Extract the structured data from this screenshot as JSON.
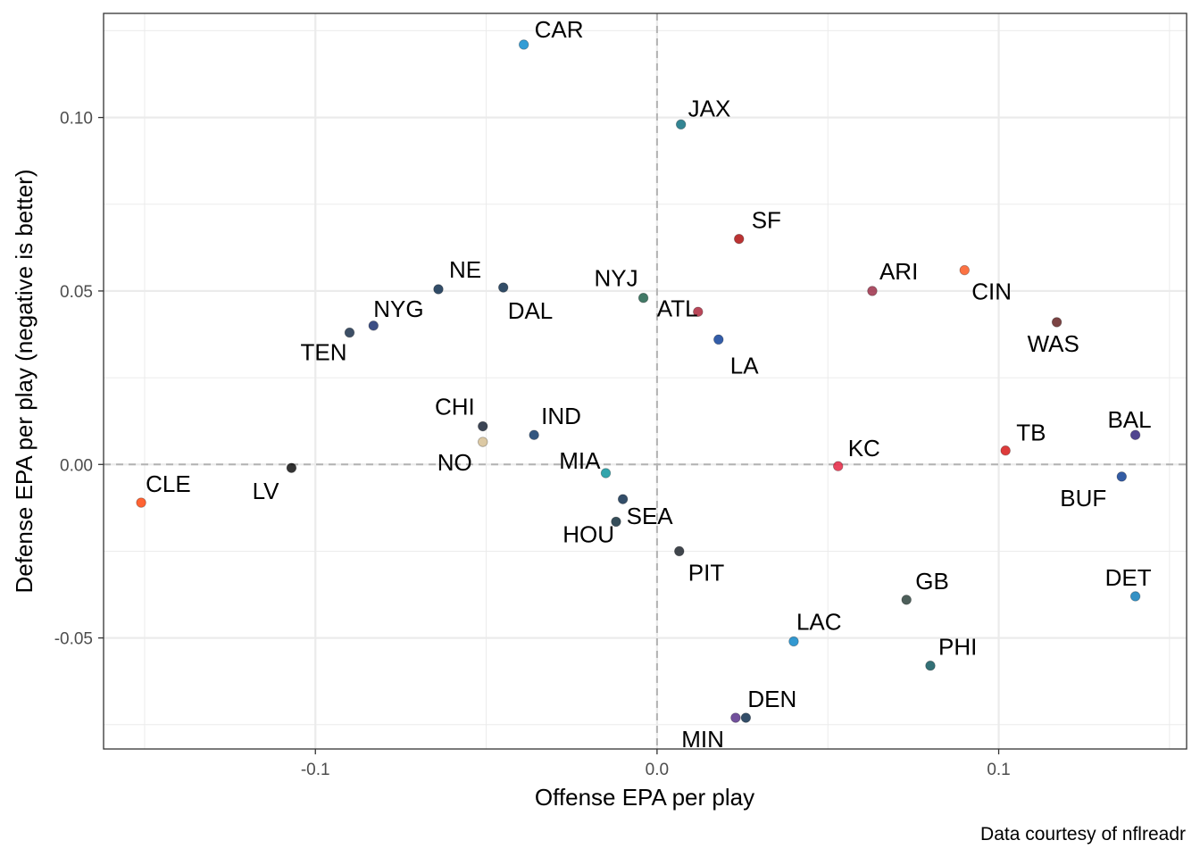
{
  "chart_data": {
    "type": "scatter",
    "title": "",
    "xlabel": "Offense EPA per play",
    "ylabel": "Defense EPA per play (negative is better)",
    "caption": "Data courtesy of nflreadr",
    "xlim": [
      -0.162,
      0.155
    ],
    "ylim": [
      -0.082,
      0.13
    ],
    "x_ticks": [
      -0.1,
      0.0,
      0.1
    ],
    "x_tick_labels": [
      "-0.1",
      "0.0",
      "0.1"
    ],
    "y_ticks": [
      -0.05,
      0.0,
      0.05,
      0.1
    ],
    "y_tick_labels": [
      "-0.05",
      "0.00",
      "0.05",
      "0.10"
    ],
    "reference_lines": {
      "x": 0,
      "y": 0,
      "style": "dashed"
    },
    "grid": true,
    "points": [
      {
        "team": "CAR",
        "x": -0.039,
        "y": 0.121,
        "color": "#0085CA"
      },
      {
        "team": "JAX",
        "x": 0.007,
        "y": 0.098,
        "color": "#006778"
      },
      {
        "team": "SF",
        "x": 0.024,
        "y": 0.065,
        "color": "#AA0000"
      },
      {
        "team": "ARI",
        "x": 0.063,
        "y": 0.05,
        "color": "#97233F"
      },
      {
        "team": "CIN",
        "x": 0.09,
        "y": 0.056,
        "color": "#FB4F14"
      },
      {
        "team": "WAS",
        "x": 0.117,
        "y": 0.041,
        "color": "#5A1414"
      },
      {
        "team": "NE",
        "x": -0.064,
        "y": 0.0505,
        "color": "#002244"
      },
      {
        "team": "DAL",
        "x": -0.045,
        "y": 0.051,
        "color": "#002244"
      },
      {
        "team": "NYJ",
        "x": -0.004,
        "y": 0.048,
        "color": "#125740"
      },
      {
        "team": "ATL",
        "x": 0.012,
        "y": 0.044,
        "color": "#A71930"
      },
      {
        "team": "LA",
        "x": 0.018,
        "y": 0.036,
        "color": "#003594"
      },
      {
        "team": "NYG",
        "x": -0.083,
        "y": 0.04,
        "color": "#0B2265"
      },
      {
        "team": "TEN",
        "x": -0.09,
        "y": 0.038,
        "color": "#0C2340"
      },
      {
        "team": "CHI",
        "x": -0.051,
        "y": 0.011,
        "color": "#0B162A"
      },
      {
        "team": "IND",
        "x": -0.036,
        "y": 0.0085,
        "color": "#002C5F"
      },
      {
        "team": "NO",
        "x": -0.051,
        "y": 0.0065,
        "color": "#D3BC8D"
      },
      {
        "team": "MIA",
        "x": -0.015,
        "y": -0.0025,
        "color": "#008E97"
      },
      {
        "team": "SEA",
        "x": -0.01,
        "y": -0.01,
        "color": "#002244"
      },
      {
        "team": "HOU",
        "x": -0.012,
        "y": -0.0165,
        "color": "#03202F"
      },
      {
        "team": "PIT",
        "x": 0.0065,
        "y": -0.025,
        "color": "#101820"
      },
      {
        "team": "LV",
        "x": -0.107,
        "y": -0.001,
        "color": "#000000"
      },
      {
        "team": "CLE",
        "x": -0.151,
        "y": -0.011,
        "color": "#FF3C00"
      },
      {
        "team": "KC",
        "x": 0.053,
        "y": -0.0005,
        "color": "#E31837"
      },
      {
        "team": "TB",
        "x": 0.102,
        "y": 0.004,
        "color": "#D50A0A"
      },
      {
        "team": "BAL",
        "x": 0.14,
        "y": 0.0085,
        "color": "#241773"
      },
      {
        "team": "BUF",
        "x": 0.136,
        "y": -0.0035,
        "color": "#00338D"
      },
      {
        "team": "DET",
        "x": 0.14,
        "y": -0.038,
        "color": "#0076B6"
      },
      {
        "team": "GB",
        "x": 0.073,
        "y": -0.039,
        "color": "#203731"
      },
      {
        "team": "LAC",
        "x": 0.04,
        "y": -0.051,
        "color": "#0080C6"
      },
      {
        "team": "PHI",
        "x": 0.08,
        "y": -0.058,
        "color": "#004C54"
      },
      {
        "team": "DEN",
        "x": 0.026,
        "y": -0.073,
        "color": "#002244"
      },
      {
        "team": "MIN",
        "x": 0.023,
        "y": -0.073,
        "color": "#4F2683"
      }
    ]
  }
}
